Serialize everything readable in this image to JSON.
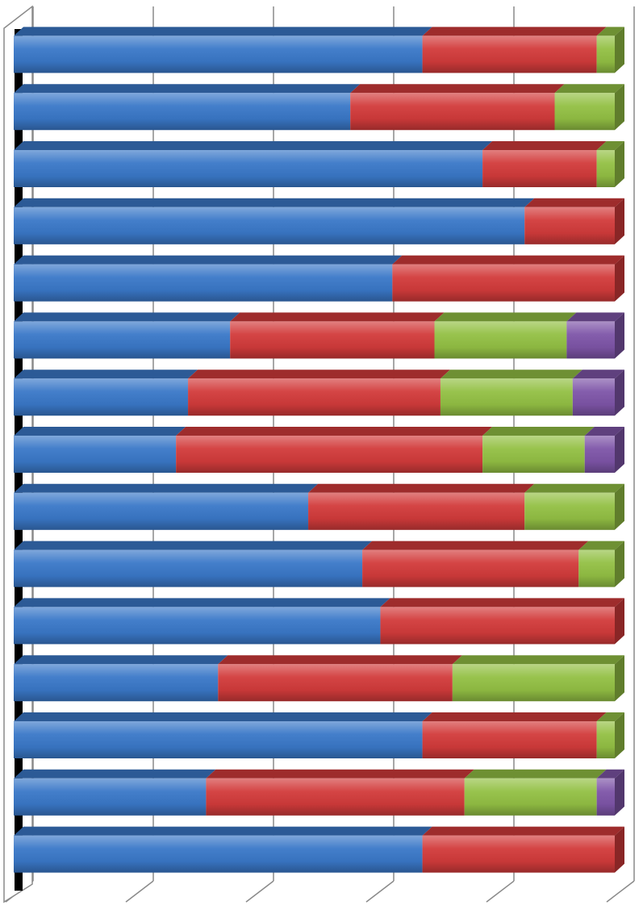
{
  "chart_data": {
    "type": "bar",
    "orientation": "horizontal",
    "stacked": true,
    "percent_stacked": true,
    "title": "",
    "xlabel": "",
    "ylabel": "",
    "xlim": [
      0,
      100
    ],
    "grid": true,
    "legend": "none",
    "tick_labels_visible": false,
    "series": [
      {
        "color": "#3a78c8",
        "values": [
          68,
          56,
          78,
          85,
          63,
          36,
          29,
          27,
          49,
          58,
          61,
          34,
          68,
          32,
          68
        ]
      },
      {
        "color": "#d23b3b",
        "values": [
          29,
          34,
          19,
          15,
          37,
          34,
          42,
          51,
          36,
          36,
          39,
          39,
          29,
          43,
          32
        ]
      },
      {
        "color": "#93c044",
        "values": [
          3,
          10,
          3,
          0,
          0,
          22,
          22,
          17,
          15,
          6,
          0,
          27,
          3,
          22,
          0
        ]
      },
      {
        "color": "#7e55a8",
        "values": [
          0,
          0,
          0,
          0,
          0,
          8,
          7,
          5,
          0,
          0,
          0,
          0,
          0,
          3,
          0
        ]
      }
    ]
  }
}
